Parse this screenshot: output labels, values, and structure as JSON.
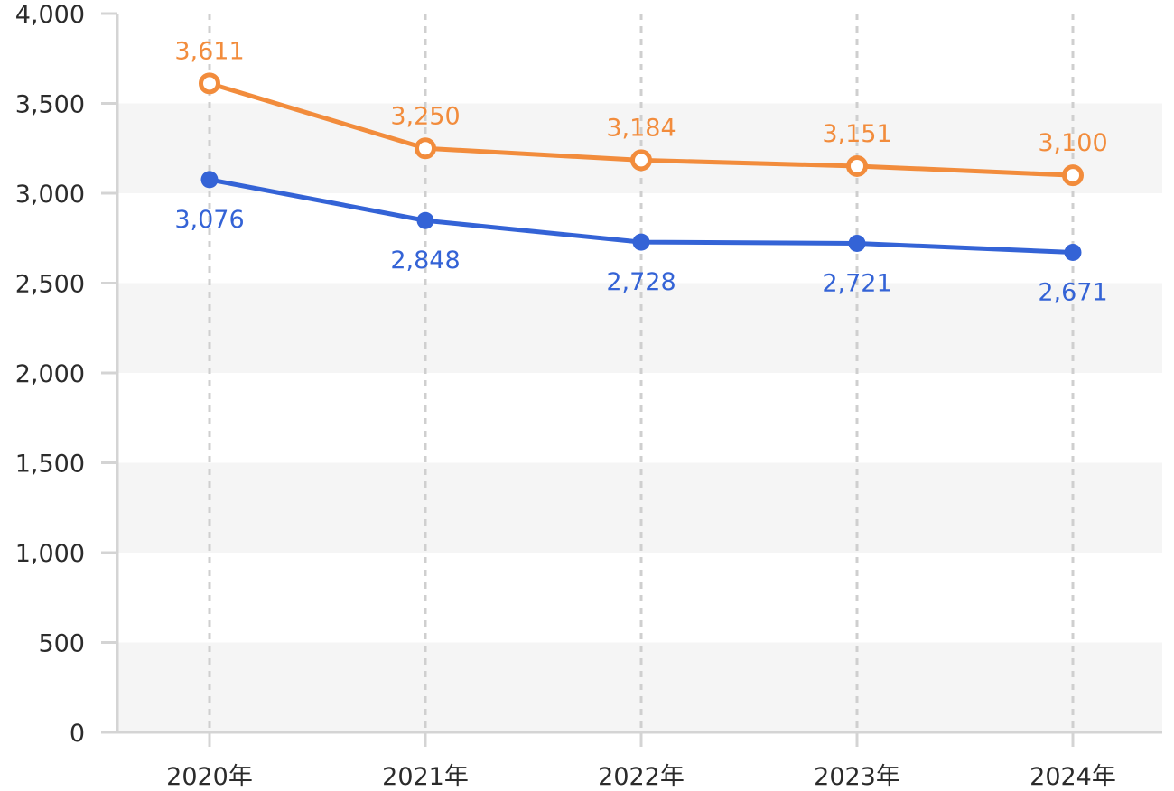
{
  "chart_data": {
    "type": "line",
    "title": "",
    "xlabel": "",
    "ylabel": "",
    "categories": [
      "2020年",
      "2021年",
      "2022年",
      "2023年",
      "2024年"
    ],
    "ylim": [
      0,
      4000
    ],
    "yticks": [
      0,
      500,
      1000,
      1500,
      2000,
      2500,
      3000,
      3500,
      4000
    ],
    "ytick_labels": [
      "0",
      "500",
      "1,000",
      "1,500",
      "2,000",
      "2,500",
      "3,000",
      "3,500",
      "4,000"
    ],
    "grid": "alternating horizontal bands, dashed vertical lines",
    "legend": "none",
    "series": [
      {
        "values": [
          3611,
          3250,
          3184,
          3151,
          3100
        ],
        "labels": [
          "3,611",
          "3,250",
          "3,184",
          "3,151",
          "3,100"
        ],
        "color": "#f28c3c",
        "marker": "open-circle",
        "label_position": "above"
      },
      {
        "values": [
          3076,
          2848,
          2728,
          2721,
          2671
        ],
        "labels": [
          "3,076",
          "2,848",
          "2,728",
          "2,721",
          "2,671"
        ],
        "color": "#3463d6",
        "marker": "filled-circle",
        "label_position": "below"
      }
    ]
  }
}
